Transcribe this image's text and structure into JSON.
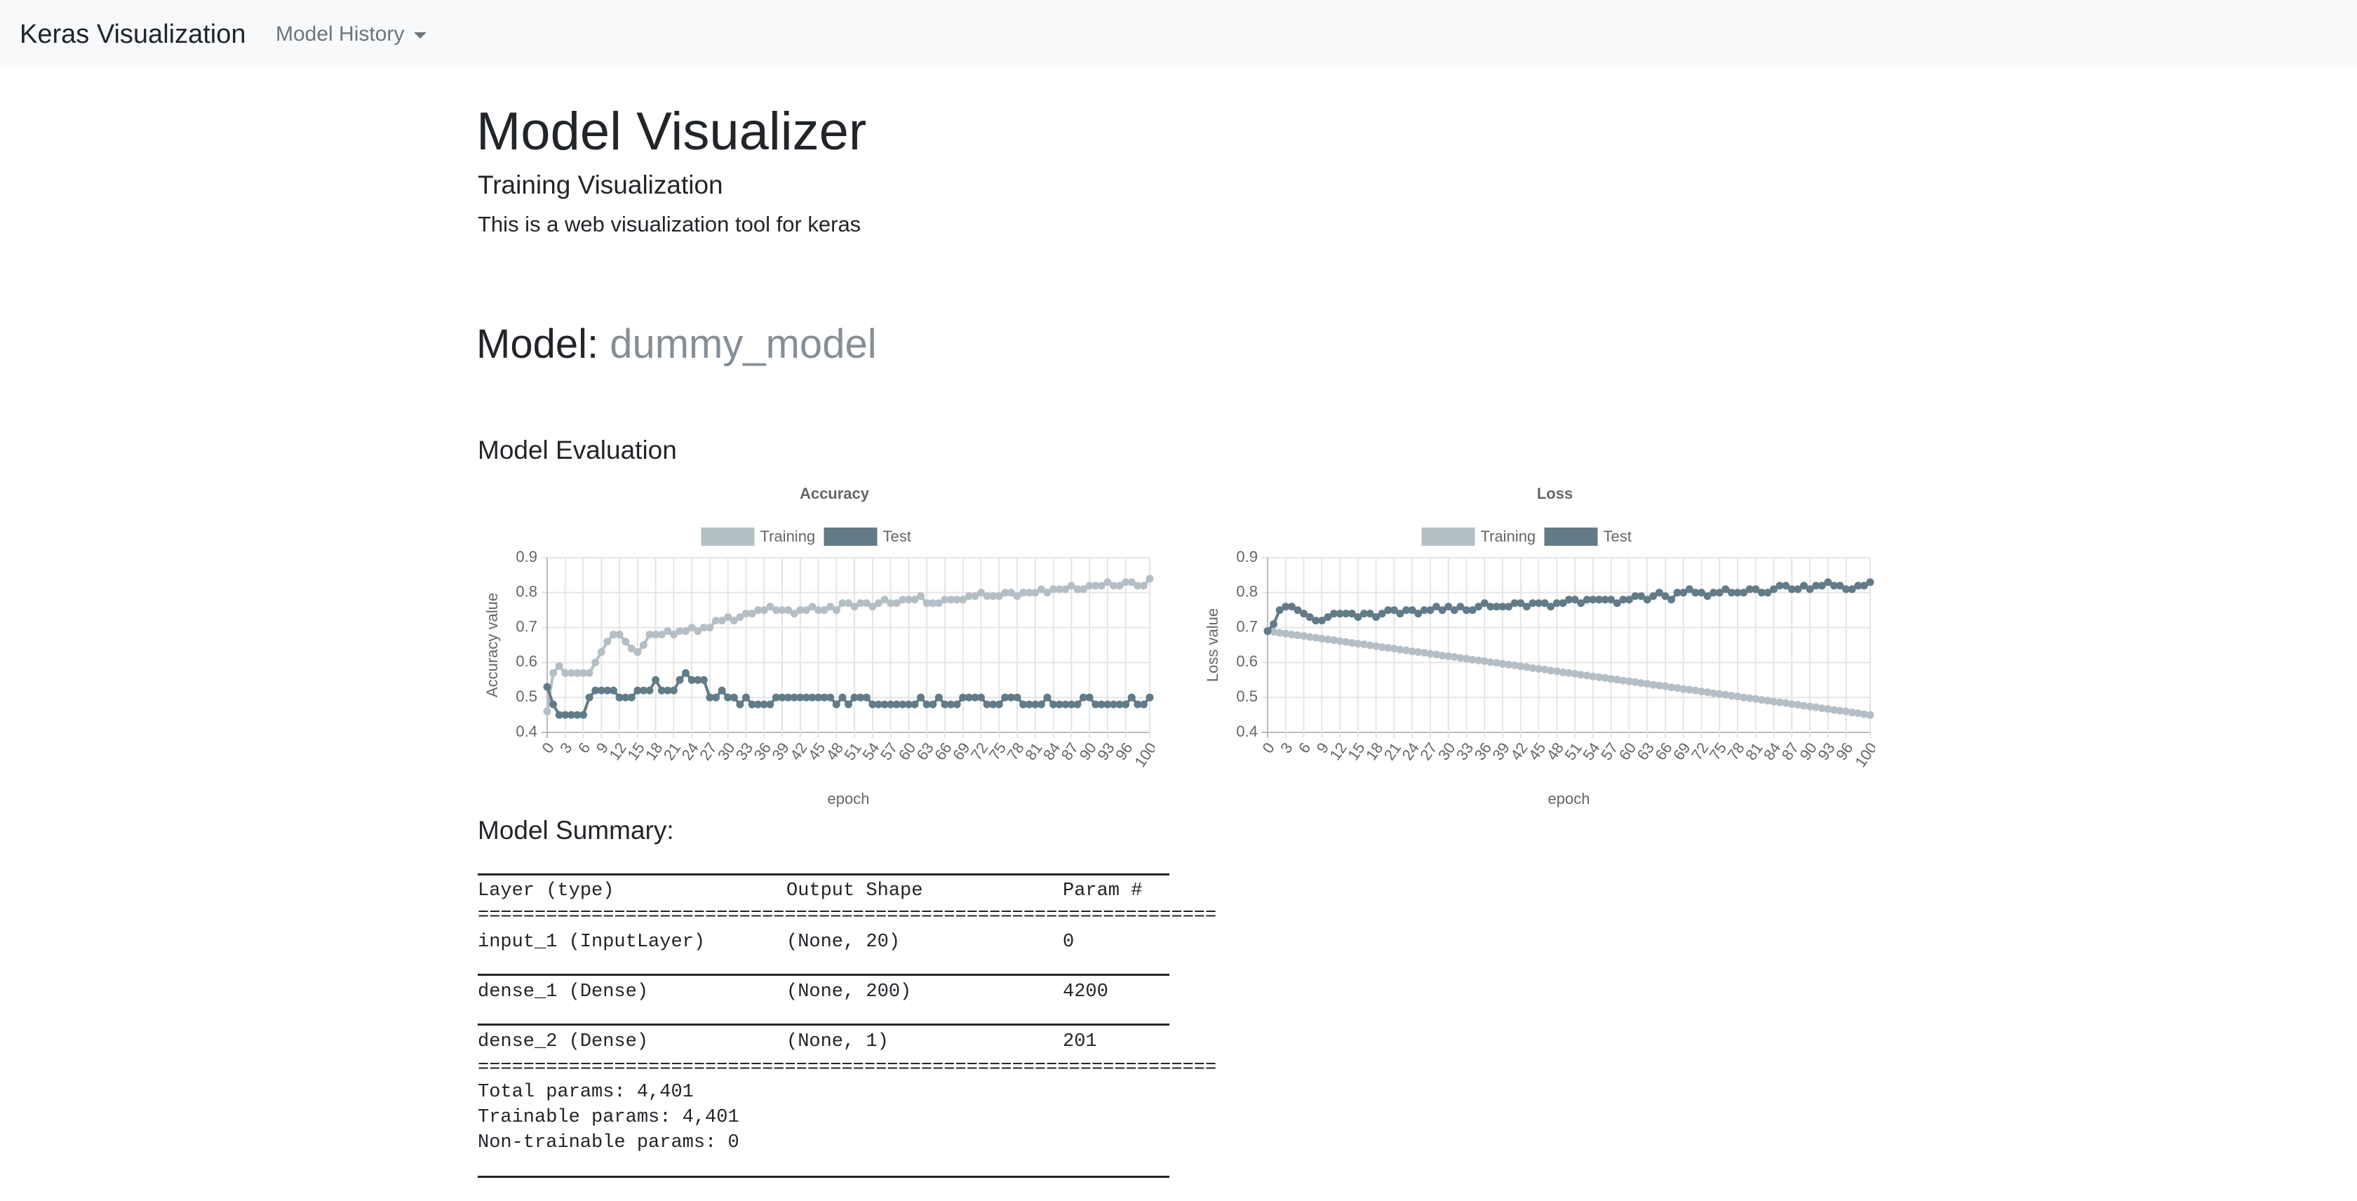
{
  "navbar": {
    "brand": "Keras Visualization",
    "menu": "Model History"
  },
  "header": {
    "title": "Model Visualizer",
    "subtitle": "Training Visualization",
    "description": "This is a web visualization tool for keras"
  },
  "model": {
    "label": "Model:",
    "name": "dummy_model"
  },
  "evaluation": {
    "heading": "Model Evaluation"
  },
  "chart_data": [
    {
      "type": "line",
      "title": "Accuracy",
      "y_label": "Accuracy value",
      "x_label": "epoch",
      "x": [
        0,
        1,
        2,
        3,
        4,
        5,
        6,
        7,
        8,
        9,
        10,
        11,
        12,
        13,
        14,
        15,
        16,
        17,
        18,
        19,
        20,
        21,
        22,
        23,
        24,
        25,
        26,
        27,
        28,
        29,
        30,
        31,
        32,
        33,
        34,
        35,
        36,
        37,
        38,
        39,
        40,
        41,
        42,
        43,
        44,
        45,
        46,
        47,
        48,
        49,
        50,
        51,
        52,
        53,
        54,
        55,
        56,
        57,
        58,
        59,
        60,
        61,
        62,
        63,
        64,
        65,
        66,
        67,
        68,
        69,
        70,
        71,
        72,
        73,
        74,
        75,
        76,
        77,
        78,
        79,
        80,
        81,
        82,
        83,
        84,
        85,
        86,
        87,
        88,
        89,
        90,
        91,
        92,
        93,
        94,
        95,
        96,
        97,
        98,
        99,
        100
      ],
      "xlim": [
        0,
        100
      ],
      "xticks": [
        0,
        3,
        6,
        9,
        12,
        15,
        18,
        21,
        24,
        27,
        30,
        33,
        36,
        39,
        42,
        45,
        48,
        51,
        54,
        57,
        60,
        63,
        66,
        69,
        72,
        75,
        78,
        81,
        84,
        87,
        90,
        93,
        96,
        100
      ],
      "ylim": [
        0.4,
        0.9
      ],
      "yticks": [
        0.4,
        0.5,
        0.6,
        0.7,
        0.8,
        0.9
      ],
      "grid": true,
      "series": [
        {
          "name": "Training",
          "color": "#b4bfc5",
          "values": [
            0.46,
            0.57,
            0.59,
            0.57,
            0.57,
            0.57,
            0.57,
            0.57,
            0.6,
            0.63,
            0.66,
            0.68,
            0.68,
            0.66,
            0.64,
            0.63,
            0.65,
            0.68,
            0.68,
            0.68,
            0.69,
            0.68,
            0.69,
            0.69,
            0.7,
            0.69,
            0.7,
            0.7,
            0.72,
            0.72,
            0.73,
            0.72,
            0.73,
            0.74,
            0.74,
            0.75,
            0.75,
            0.76,
            0.75,
            0.75,
            0.75,
            0.74,
            0.75,
            0.75,
            0.76,
            0.75,
            0.75,
            0.76,
            0.75,
            0.77,
            0.77,
            0.76,
            0.77,
            0.77,
            0.76,
            0.77,
            0.78,
            0.77,
            0.77,
            0.78,
            0.78,
            0.78,
            0.79,
            0.77,
            0.77,
            0.77,
            0.78,
            0.78,
            0.78,
            0.78,
            0.79,
            0.79,
            0.8,
            0.79,
            0.79,
            0.79,
            0.8,
            0.8,
            0.79,
            0.8,
            0.8,
            0.8,
            0.81,
            0.8,
            0.81,
            0.81,
            0.81,
            0.82,
            0.81,
            0.81,
            0.82,
            0.82,
            0.82,
            0.83,
            0.82,
            0.82,
            0.83,
            0.83,
            0.82,
            0.82,
            0.84
          ]
        },
        {
          "name": "Test",
          "color": "#627b88",
          "values": [
            0.53,
            0.48,
            0.45,
            0.45,
            0.45,
            0.45,
            0.45,
            0.5,
            0.52,
            0.52,
            0.52,
            0.52,
            0.5,
            0.5,
            0.5,
            0.52,
            0.52,
            0.52,
            0.55,
            0.52,
            0.52,
            0.52,
            0.55,
            0.57,
            0.55,
            0.55,
            0.55,
            0.5,
            0.5,
            0.52,
            0.5,
            0.5,
            0.48,
            0.5,
            0.48,
            0.48,
            0.48,
            0.48,
            0.5,
            0.5,
            0.5,
            0.5,
            0.5,
            0.5,
            0.5,
            0.5,
            0.5,
            0.5,
            0.48,
            0.5,
            0.48,
            0.5,
            0.5,
            0.5,
            0.48,
            0.48,
            0.48,
            0.48,
            0.48,
            0.48,
            0.48,
            0.48,
            0.5,
            0.48,
            0.48,
            0.5,
            0.48,
            0.48,
            0.48,
            0.5,
            0.5,
            0.5,
            0.5,
            0.48,
            0.48,
            0.48,
            0.5,
            0.5,
            0.5,
            0.48,
            0.48,
            0.48,
            0.48,
            0.5,
            0.48,
            0.48,
            0.48,
            0.48,
            0.48,
            0.5,
            0.5,
            0.48,
            0.48,
            0.48,
            0.48,
            0.48,
            0.48,
            0.5,
            0.48,
            0.48,
            0.5
          ]
        }
      ]
    },
    {
      "type": "line",
      "title": "Loss",
      "y_label": "Loss value",
      "x_label": "epoch",
      "x": [
        0,
        1,
        2,
        3,
        4,
        5,
        6,
        7,
        8,
        9,
        10,
        11,
        12,
        13,
        14,
        15,
        16,
        17,
        18,
        19,
        20,
        21,
        22,
        23,
        24,
        25,
        26,
        27,
        28,
        29,
        30,
        31,
        32,
        33,
        34,
        35,
        36,
        37,
        38,
        39,
        40,
        41,
        42,
        43,
        44,
        45,
        46,
        47,
        48,
        49,
        50,
        51,
        52,
        53,
        54,
        55,
        56,
        57,
        58,
        59,
        60,
        61,
        62,
        63,
        64,
        65,
        66,
        67,
        68,
        69,
        70,
        71,
        72,
        73,
        74,
        75,
        76,
        77,
        78,
        79,
        80,
        81,
        82,
        83,
        84,
        85,
        86,
        87,
        88,
        89,
        90,
        91,
        92,
        93,
        94,
        95,
        96,
        97,
        98,
        99,
        100
      ],
      "xlim": [
        0,
        100
      ],
      "xticks": [
        0,
        3,
        6,
        9,
        12,
        15,
        18,
        21,
        24,
        27,
        30,
        33,
        36,
        39,
        42,
        45,
        48,
        51,
        54,
        57,
        60,
        63,
        66,
        69,
        72,
        75,
        78,
        81,
        84,
        87,
        90,
        93,
        96,
        100
      ],
      "ylim": [
        0.4,
        0.9
      ],
      "yticks": [
        0.4,
        0.5,
        0.6,
        0.7,
        0.8,
        0.9
      ],
      "grid": true,
      "series": [
        {
          "name": "Training",
          "color": "#b4bfc5",
          "values": [
            0.69,
            0.688,
            0.685,
            0.683,
            0.68,
            0.678,
            0.676,
            0.673,
            0.671,
            0.668,
            0.666,
            0.664,
            0.661,
            0.659,
            0.656,
            0.654,
            0.652,
            0.649,
            0.647,
            0.644,
            0.642,
            0.64,
            0.637,
            0.635,
            0.632,
            0.63,
            0.628,
            0.625,
            0.623,
            0.62,
            0.618,
            0.616,
            0.613,
            0.611,
            0.608,
            0.606,
            0.604,
            0.601,
            0.599,
            0.596,
            0.594,
            0.592,
            0.589,
            0.587,
            0.584,
            0.582,
            0.58,
            0.577,
            0.575,
            0.572,
            0.57,
            0.568,
            0.565,
            0.563,
            0.56,
            0.558,
            0.556,
            0.553,
            0.551,
            0.548,
            0.546,
            0.544,
            0.541,
            0.539,
            0.536,
            0.534,
            0.532,
            0.529,
            0.527,
            0.524,
            0.522,
            0.52,
            0.517,
            0.515,
            0.512,
            0.51,
            0.508,
            0.505,
            0.503,
            0.5,
            0.498,
            0.496,
            0.493,
            0.491,
            0.488,
            0.486,
            0.484,
            0.481,
            0.479,
            0.476,
            0.474,
            0.472,
            0.469,
            0.467,
            0.464,
            0.462,
            0.46,
            0.457,
            0.455,
            0.452,
            0.45
          ]
        },
        {
          "name": "Test",
          "color": "#627b88",
          "values": [
            0.69,
            0.71,
            0.75,
            0.76,
            0.76,
            0.75,
            0.74,
            0.73,
            0.72,
            0.72,
            0.73,
            0.74,
            0.74,
            0.74,
            0.74,
            0.73,
            0.74,
            0.74,
            0.73,
            0.74,
            0.75,
            0.75,
            0.74,
            0.75,
            0.75,
            0.74,
            0.75,
            0.75,
            0.76,
            0.75,
            0.76,
            0.75,
            0.76,
            0.75,
            0.75,
            0.76,
            0.77,
            0.76,
            0.76,
            0.76,
            0.76,
            0.77,
            0.77,
            0.76,
            0.77,
            0.77,
            0.77,
            0.76,
            0.77,
            0.77,
            0.78,
            0.78,
            0.77,
            0.78,
            0.78,
            0.78,
            0.78,
            0.78,
            0.77,
            0.78,
            0.78,
            0.79,
            0.79,
            0.78,
            0.79,
            0.8,
            0.79,
            0.78,
            0.8,
            0.8,
            0.81,
            0.8,
            0.8,
            0.79,
            0.8,
            0.8,
            0.81,
            0.8,
            0.8,
            0.8,
            0.81,
            0.81,
            0.8,
            0.8,
            0.81,
            0.82,
            0.82,
            0.81,
            0.81,
            0.82,
            0.81,
            0.82,
            0.82,
            0.83,
            0.82,
            0.82,
            0.81,
            0.81,
            0.82,
            0.82,
            0.83
          ]
        }
      ]
    }
  ],
  "summary": {
    "heading": "Model Summary:",
    "columns": [
      "Layer (type)",
      "Output Shape",
      "Param #"
    ],
    "separator": "=================================================================",
    "rows": [
      [
        "input_1 (InputLayer)",
        "(None, 20)",
        "0"
      ],
      [
        "dense_1 (Dense)",
        "(None, 200)",
        "4200"
      ],
      [
        "dense_2 (Dense)",
        "(None, 1)",
        "201"
      ]
    ],
    "totals": [
      "Total params: 4,401",
      "Trainable params: 4,401",
      "Non-trainable params: 0"
    ]
  }
}
